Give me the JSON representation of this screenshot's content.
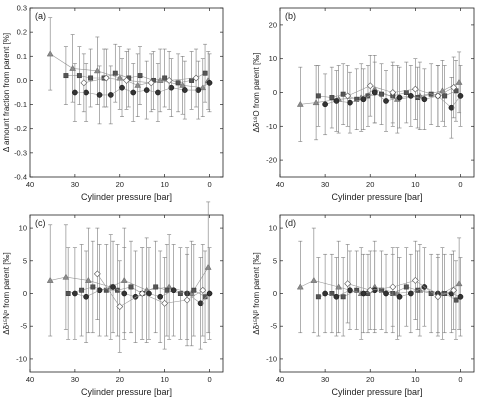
{
  "chart_data": [
    {
      "type": "scatter",
      "panel_label": "(a)",
      "xlabel": "Cylinder pressure [bar]",
      "ylabel": "Δ amount fraction from parent [%]",
      "xlim": [
        40,
        -3
      ],
      "ylim": [
        -0.4,
        0.3
      ],
      "xticks": [
        40,
        30,
        20,
        10,
        0
      ],
      "yticks": [
        0.3,
        0.2,
        0.1,
        0.0,
        -0.1,
        -0.2,
        -0.3,
        -0.4
      ],
      "ytick_labels": [
        "0.3",
        "0.2",
        "0.1",
        "0.0",
        "-0.1",
        "-0.2",
        "-0.3",
        "-0.4"
      ],
      "series": [
        {
          "marker": "triangle",
          "color": "#8a8a8a",
          "x": [
            35.5,
            30.5,
            25,
            20,
            16,
            11,
            6,
            1.5,
            0.3
          ],
          "y": [
            0.11,
            0.05,
            0.04,
            0.01,
            -0.02,
            0.0,
            -0.02,
            -0.03,
            0.0
          ],
          "err": [
            0.15,
            0.14,
            0.14,
            0.13,
            0.13,
            0.13,
            0.12,
            0.12,
            0.12
          ]
        },
        {
          "marker": "square",
          "color": "#555555",
          "x": [
            32,
            29,
            26.5,
            23.5,
            21,
            18,
            15.5,
            12.5,
            10,
            7,
            4,
            1
          ],
          "y": [
            0.02,
            0.02,
            0.01,
            0.01,
            0.03,
            0.01,
            0.02,
            0.0,
            0.01,
            -0.01,
            0.0,
            0.03
          ],
          "err": [
            0.12,
            0.12,
            0.12,
            0.12,
            0.12,
            0.12,
            0.12,
            0.12,
            0.12,
            0.12,
            0.12,
            0.12
          ]
        },
        {
          "marker": "circle",
          "color": "#333333",
          "x": [
            30,
            27.5,
            24.5,
            22,
            19.5,
            17,
            14,
            11.5,
            8.5,
            5.5,
            2.5,
            0
          ],
          "y": [
            -0.05,
            -0.05,
            -0.06,
            -0.06,
            -0.03,
            -0.05,
            -0.04,
            -0.05,
            -0.03,
            -0.04,
            -0.04,
            -0.01
          ],
          "err": [
            0.12,
            0.12,
            0.12,
            0.12,
            0.12,
            0.12,
            0.12,
            0.12,
            0.12,
            0.12,
            0.12,
            0.12
          ]
        },
        {
          "marker": "diamond",
          "color": "#ffffff",
          "x": [
            28,
            23,
            18.5,
            13,
            9,
            3
          ],
          "y": [
            -0.01,
            0.01,
            0.0,
            -0.01,
            0.0,
            0.01
          ],
          "err": [
            0.12,
            0.12,
            0.12,
            0.12,
            0.12,
            0.12
          ]
        }
      ]
    },
    {
      "type": "scatter",
      "panel_label": "(b)",
      "xlabel": "Cylinder pressure [bar]",
      "ylabel": "Δδ¹⁸O from parent [‰]",
      "xlim": [
        40,
        -3
      ],
      "ylim": [
        -25,
        25
      ],
      "xticks": [
        40,
        30,
        20,
        10,
        0
      ],
      "yticks": [
        20,
        10,
        0,
        -10,
        -20
      ],
      "ytick_labels": [
        "20",
        "10",
        "0",
        "-10",
        "-20"
      ],
      "series": [
        {
          "marker": "triangle",
          "color": "#8a8a8a",
          "x": [
            35.5,
            32,
            27,
            22,
            19,
            14,
            9,
            4,
            0.3
          ],
          "y": [
            -3.5,
            -3.0,
            -2.0,
            -1.5,
            1.0,
            -2.0,
            -1.0,
            0.5,
            3.0
          ],
          "err": [
            11,
            11,
            10,
            10,
            10,
            10,
            10,
            9,
            9
          ]
        },
        {
          "marker": "square",
          "color": "#555555",
          "x": [
            31.5,
            28.5,
            26,
            23,
            20.5,
            17.5,
            15,
            12,
            9.5,
            6.5,
            3.5,
            1
          ],
          "y": [
            -1.0,
            -1.5,
            -0.5,
            -2.0,
            -1.0,
            -0.5,
            -1.0,
            0.0,
            -1.5,
            -0.5,
            -1.0,
            0.5
          ],
          "err": [
            9,
            9,
            9,
            9,
            9,
            9,
            9,
            9,
            9,
            9,
            9,
            9
          ]
        },
        {
          "marker": "circle",
          "color": "#333333",
          "x": [
            30,
            27.5,
            24.5,
            21.5,
            19,
            16.5,
            13.5,
            11,
            8,
            5,
            2,
            0
          ],
          "y": [
            -3.5,
            -2.5,
            -3.0,
            -2.0,
            0.0,
            -2.5,
            -1.5,
            -1.0,
            -2.0,
            -1.0,
            -4.5,
            -1.0
          ],
          "err": [
            9,
            9,
            9,
            9,
            9,
            9,
            9,
            9,
            9,
            9,
            9,
            9
          ]
        },
        {
          "marker": "diamond",
          "color": "#ffffff",
          "x": [
            25,
            20,
            15,
            10,
            5,
            1.5
          ],
          "y": [
            -1.0,
            2.0,
            0.0,
            1.0,
            -1.0,
            1.5
          ],
          "err": [
            9,
            9,
            9,
            9,
            9,
            9
          ]
        }
      ]
    },
    {
      "type": "scatter",
      "panel_label": "(c)",
      "xlabel": "Cylinder pressure [bar]",
      "ylabel": "Δδ¹⁵Nᵅ from parent [‰]",
      "xlim": [
        40,
        -3
      ],
      "ylim": [
        -12,
        12
      ],
      "xticks": [
        40,
        30,
        20,
        10,
        0
      ],
      "yticks": [
        10,
        5,
        0,
        -5,
        -10
      ],
      "ytick_labels": [
        "10",
        "5",
        "0",
        "-5",
        "-10"
      ],
      "series": [
        {
          "marker": "triangle",
          "color": "#8a8a8a",
          "x": [
            35.5,
            32,
            27,
            22,
            19,
            14,
            9,
            4,
            0.3
          ],
          "y": [
            2.0,
            2.5,
            2.0,
            1.0,
            2.0,
            0.5,
            1.0,
            0.0,
            4.0
          ],
          "err": [
            8.5,
            8,
            8,
            8,
            8,
            8,
            8,
            8,
            10
          ]
        },
        {
          "marker": "square",
          "color": "#555555",
          "x": [
            31.5,
            28.5,
            26,
            23,
            20.5,
            17.5,
            15,
            12,
            9.5,
            6.5,
            3.5,
            1
          ],
          "y": [
            0.0,
            0.5,
            1.0,
            0.5,
            0.5,
            1.0,
            0.0,
            1.0,
            0.5,
            0.0,
            0.5,
            -0.5
          ],
          "err": [
            7,
            7,
            7,
            7,
            7,
            7,
            7,
            7,
            7,
            7,
            7,
            7
          ]
        },
        {
          "marker": "circle",
          "color": "#333333",
          "x": [
            30,
            27.5,
            24.5,
            21.5,
            19,
            16.5,
            13.5,
            11,
            8,
            5,
            2,
            0
          ],
          "y": [
            0.0,
            -0.5,
            0.5,
            1.0,
            0.0,
            -0.5,
            0.0,
            -0.5,
            0.5,
            0.0,
            -1.5,
            0.0
          ],
          "err": [
            7,
            7,
            7,
            7,
            7,
            7,
            7,
            7,
            7,
            7,
            7,
            7
          ]
        },
        {
          "marker": "diamond",
          "color": "#ffffff",
          "x": [
            25,
            20,
            15,
            10,
            5,
            1.5
          ],
          "y": [
            3.0,
            -2.0,
            0.0,
            -1.5,
            -1.0,
            0.5
          ],
          "err": [
            7,
            7,
            7,
            7,
            7,
            7
          ]
        }
      ]
    },
    {
      "type": "scatter",
      "panel_label": "(d)",
      "xlabel": "Cylinder pressure [bar]",
      "ylabel": "Δδ¹⁵Nᵝ from parent [‰]",
      "xlim": [
        40,
        -3
      ],
      "ylim": [
        -12,
        12
      ],
      "xticks": [
        40,
        30,
        20,
        10,
        0
      ],
      "yticks": [
        10,
        5,
        0,
        -5,
        -10
      ],
      "ytick_labels": [
        "10",
        "5",
        "0",
        "-5",
        "-10"
      ],
      "series": [
        {
          "marker": "triangle",
          "color": "#8a8a8a",
          "x": [
            35.5,
            32.5,
            27,
            22,
            19,
            14,
            9,
            4,
            0.3
          ],
          "y": [
            1.0,
            2.0,
            1.0,
            0.0,
            1.0,
            0.0,
            0.5,
            0.0,
            1.5
          ],
          "err": [
            7,
            8,
            7,
            7,
            7,
            7,
            7,
            7,
            7
          ]
        },
        {
          "marker": "square",
          "color": "#555555",
          "x": [
            31.5,
            28.5,
            26,
            23,
            20.5,
            17.5,
            15,
            12,
            9.5,
            6.5,
            3.5,
            1
          ],
          "y": [
            -0.5,
            0.0,
            -0.5,
            0.5,
            0.0,
            0.5,
            0.0,
            1.0,
            0.5,
            0.0,
            0.0,
            -1.0
          ],
          "err": [
            6,
            6,
            6,
            6,
            6,
            6,
            6,
            6,
            6,
            6,
            6,
            6
          ]
        },
        {
          "marker": "circle",
          "color": "#333333",
          "x": [
            30,
            27.5,
            24.5,
            21.5,
            19,
            16.5,
            13.5,
            11,
            8,
            5,
            2,
            0
          ],
          "y": [
            0.0,
            -0.5,
            0.5,
            0.0,
            0.5,
            0.0,
            -0.5,
            0.0,
            1.0,
            0.0,
            0.0,
            -0.5
          ],
          "err": [
            6,
            6,
            6,
            6,
            6,
            6,
            6,
            6,
            6,
            6,
            6,
            6
          ]
        },
        {
          "marker": "diamond",
          "color": "#ffffff",
          "x": [
            25,
            20,
            15,
            10,
            5,
            1.5
          ],
          "y": [
            1.5,
            0.5,
            1.0,
            2.0,
            -0.5,
            0.5
          ],
          "err": [
            6,
            6,
            6,
            6,
            6,
            6
          ]
        }
      ]
    }
  ]
}
